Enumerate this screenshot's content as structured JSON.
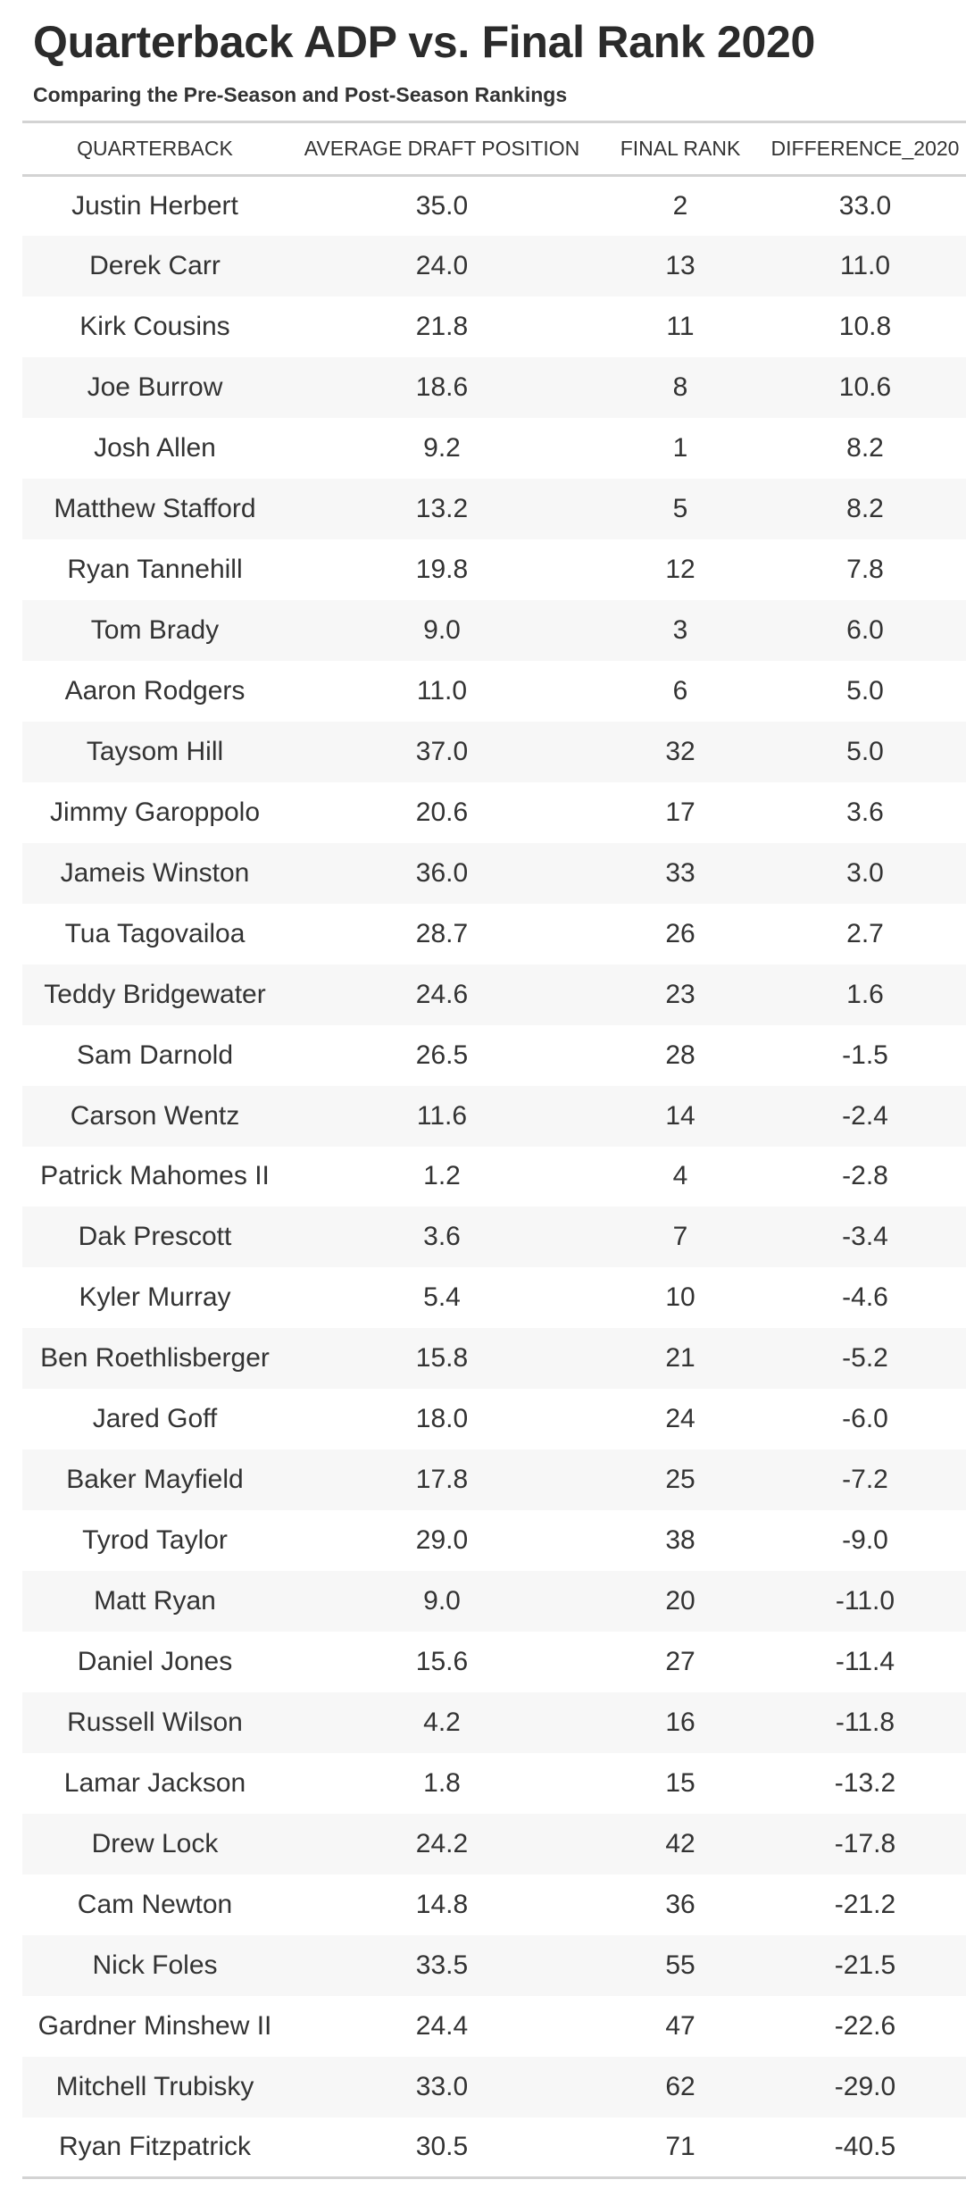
{
  "chart_data": {
    "type": "table",
    "title": "Quarterback ADP vs. Final Rank 2020",
    "subtitle": "Comparing the Pre-Season and Post-Season Rankings",
    "columns": [
      "QUARTERBACK",
      "AVERAGE DRAFT POSITION",
      "FINAL RANK",
      "DIFFERENCE_2020"
    ],
    "rows": [
      [
        "Justin Herbert",
        "35.0",
        "2",
        "33.0"
      ],
      [
        "Derek Carr",
        "24.0",
        "13",
        "11.0"
      ],
      [
        "Kirk Cousins",
        "21.8",
        "11",
        "10.8"
      ],
      [
        "Joe Burrow",
        "18.6",
        "8",
        "10.6"
      ],
      [
        "Josh Allen",
        "9.2",
        "1",
        "8.2"
      ],
      [
        "Matthew Stafford",
        "13.2",
        "5",
        "8.2"
      ],
      [
        "Ryan Tannehill",
        "19.8",
        "12",
        "7.8"
      ],
      [
        "Tom Brady",
        "9.0",
        "3",
        "6.0"
      ],
      [
        "Aaron Rodgers",
        "11.0",
        "6",
        "5.0"
      ],
      [
        "Taysom Hill",
        "37.0",
        "32",
        "5.0"
      ],
      [
        "Jimmy Garoppolo",
        "20.6",
        "17",
        "3.6"
      ],
      [
        "Jameis Winston",
        "36.0",
        "33",
        "3.0"
      ],
      [
        "Tua Tagovailoa",
        "28.7",
        "26",
        "2.7"
      ],
      [
        "Teddy Bridgewater",
        "24.6",
        "23",
        "1.6"
      ],
      [
        "Sam Darnold",
        "26.5",
        "28",
        "-1.5"
      ],
      [
        "Carson Wentz",
        "11.6",
        "14",
        "-2.4"
      ],
      [
        "Patrick Mahomes II",
        "1.2",
        "4",
        "-2.8"
      ],
      [
        "Dak Prescott",
        "3.6",
        "7",
        "-3.4"
      ],
      [
        "Kyler Murray",
        "5.4",
        "10",
        "-4.6"
      ],
      [
        "Ben Roethlisberger",
        "15.8",
        "21",
        "-5.2"
      ],
      [
        "Jared Goff",
        "18.0",
        "24",
        "-6.0"
      ],
      [
        "Baker Mayfield",
        "17.8",
        "25",
        "-7.2"
      ],
      [
        "Tyrod Taylor",
        "29.0",
        "38",
        "-9.0"
      ],
      [
        "Matt Ryan",
        "9.0",
        "20",
        "-11.0"
      ],
      [
        "Daniel Jones",
        "15.6",
        "27",
        "-11.4"
      ],
      [
        "Russell Wilson",
        "4.2",
        "16",
        "-11.8"
      ],
      [
        "Lamar Jackson",
        "1.8",
        "15",
        "-13.2"
      ],
      [
        "Drew Lock",
        "24.2",
        "42",
        "-17.8"
      ],
      [
        "Cam Newton",
        "14.8",
        "36",
        "-21.2"
      ],
      [
        "Nick Foles",
        "33.5",
        "55",
        "-21.5"
      ],
      [
        "Gardner Minshew II",
        "24.4",
        "47",
        "-22.6"
      ],
      [
        "Mitchell Trubisky",
        "33.0",
        "62",
        "-29.0"
      ],
      [
        "Ryan Fitzpatrick",
        "30.5",
        "71",
        "-40.5"
      ]
    ]
  },
  "colors": {
    "stripe": "#f7f7f7",
    "rule": "#d3d3d3",
    "text": "#333333"
  }
}
